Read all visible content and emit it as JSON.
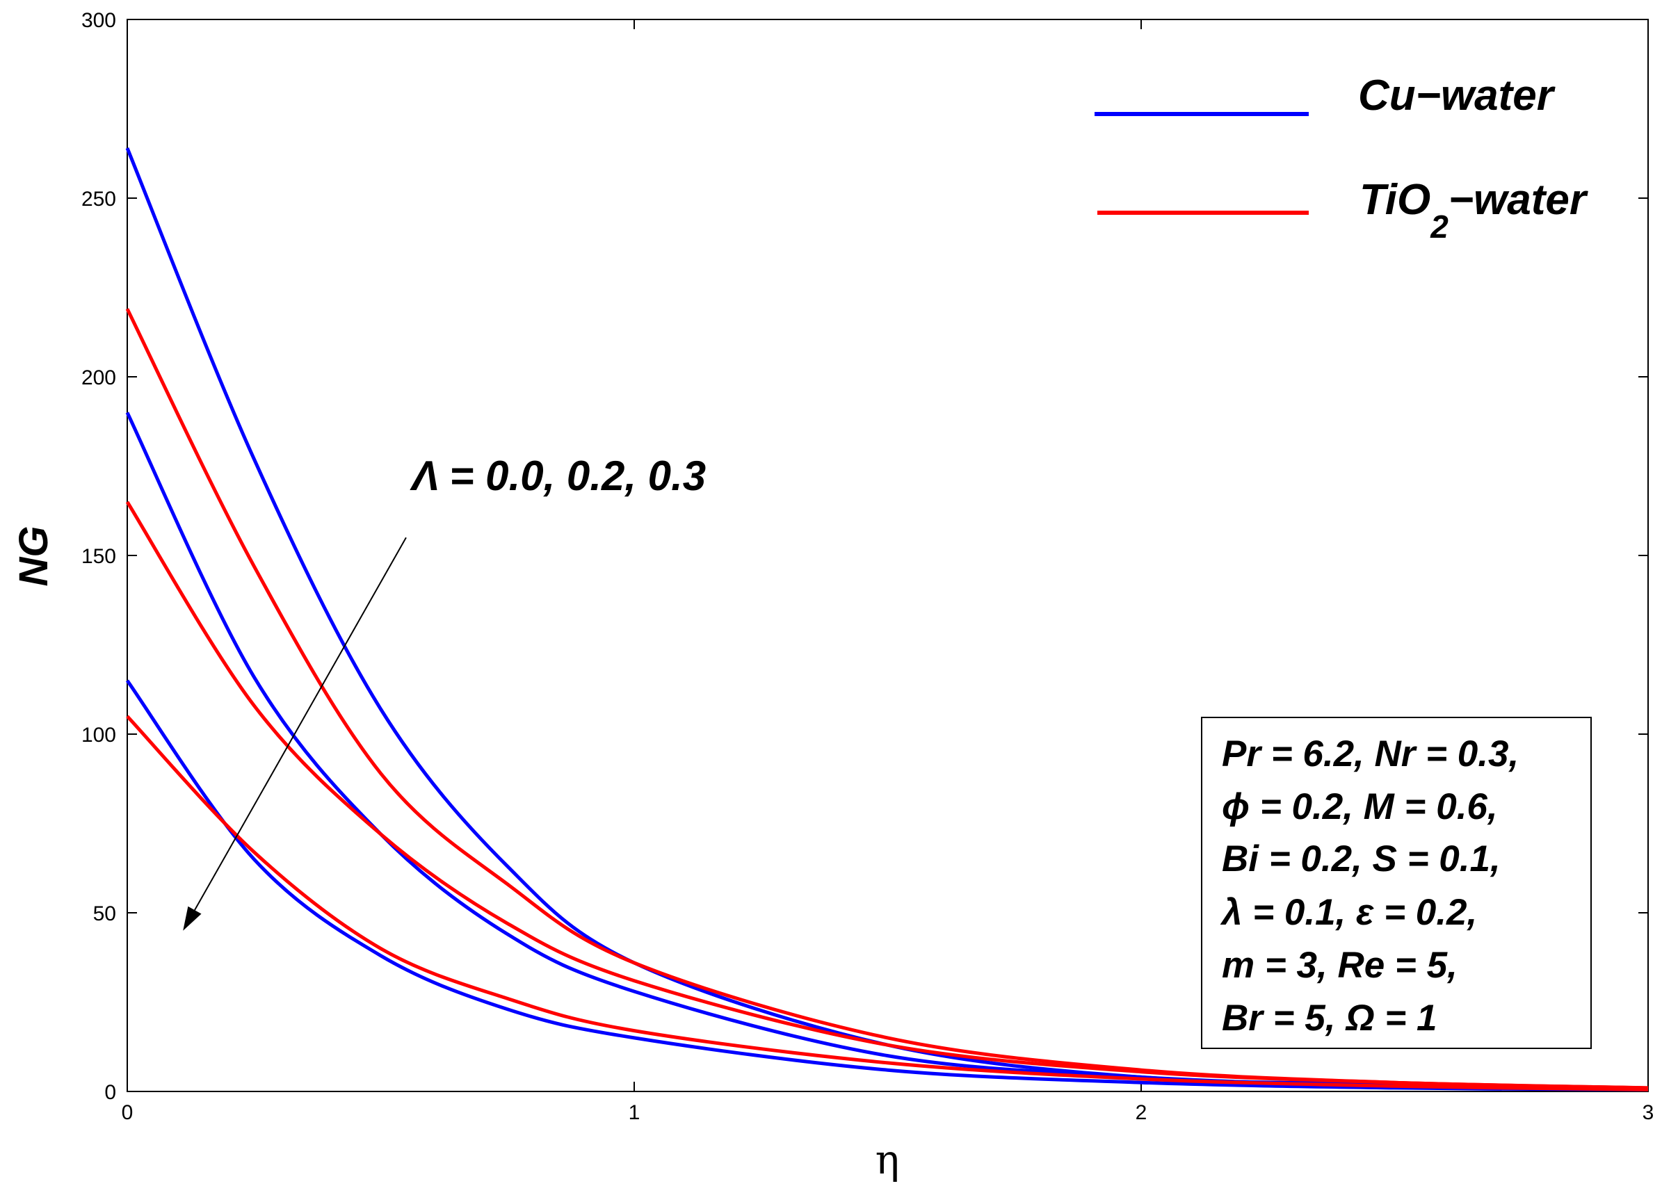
{
  "chart_data": {
    "type": "line",
    "title": "",
    "xlabel": "η",
    "ylabel": "NG",
    "xlim": [
      0,
      3
    ],
    "ylim": [
      0,
      300
    ],
    "xticks": [
      0,
      1,
      2,
      3
    ],
    "yticks": [
      0,
      50,
      100,
      150,
      200,
      250,
      300
    ],
    "xtick_labels": [
      "0",
      "1",
      "2",
      "3"
    ],
    "ytick_labels": [
      "0",
      "50",
      "100",
      "150",
      "200",
      "250",
      "300"
    ],
    "grid": false,
    "legend_position": "top-right",
    "series": [
      {
        "name": "Cu-water",
        "legend_label": "Cu−water",
        "color": "#0000ff",
        "lambda": "0.0",
        "x": [
          0,
          0.25,
          0.5,
          0.75,
          1.0,
          1.5,
          2.0,
          2.5,
          3.0
        ],
        "values": [
          264,
          177,
          107,
          63,
          36,
          13,
          4,
          2,
          0.5
        ]
      },
      {
        "name": "Cu-water",
        "legend_label": "Cu−water",
        "color": "#0000ff",
        "lambda": "0.2",
        "x": [
          0,
          0.25,
          0.5,
          0.75,
          1.0,
          1.5,
          2.0,
          2.5,
          3.0
        ],
        "values": [
          190,
          116,
          72,
          44,
          28,
          10,
          4,
          1.5,
          0.5
        ]
      },
      {
        "name": "Cu-water",
        "legend_label": "Cu−water",
        "color": "#0000ff",
        "lambda": "0.3",
        "x": [
          0,
          0.25,
          0.5,
          0.75,
          1.0,
          1.5,
          2.0,
          2.5,
          3.0
        ],
        "values": [
          115,
          65,
          38,
          23,
          15,
          6,
          2.5,
          1,
          0.5
        ]
      },
      {
        "name": "TiO2-water",
        "legend_label": "TiO₂−water",
        "color": "#ff0000",
        "lambda": "0.0",
        "x": [
          0,
          0.25,
          0.5,
          0.75,
          1.0,
          1.5,
          2.0,
          2.5,
          3.0
        ],
        "values": [
          219,
          147,
          89,
          58,
          36,
          15,
          6,
          2.5,
          1
        ]
      },
      {
        "name": "TiO2-water",
        "legend_label": "TiO₂−water",
        "color": "#ff0000",
        "lambda": "0.2",
        "x": [
          0,
          0.25,
          0.5,
          0.75,
          1.0,
          1.5,
          2.0,
          2.5,
          3.0
        ],
        "values": [
          165,
          108,
          72,
          47,
          31,
          13,
          5.5,
          2.5,
          1
        ]
      },
      {
        "name": "TiO2-water",
        "legend_label": "TiO₂−water",
        "color": "#ff0000",
        "lambda": "0.3",
        "x": [
          0,
          0.25,
          0.5,
          0.75,
          1.0,
          1.5,
          2.0,
          2.5,
          3.0
        ],
        "values": [
          105,
          67,
          40,
          26,
          17,
          8,
          3.5,
          1.5,
          0.5
        ]
      }
    ],
    "legend": [
      {
        "label": "Cu−water",
        "color": "#0000ff"
      },
      {
        "label_main": "TiO",
        "label_sub": "2",
        "label_rest": "−water",
        "color": "#ff0000"
      }
    ],
    "annotations": {
      "arrow_label": "Λ = 0.0, 0.2, 0.3",
      "arrow_from": [
        0.55,
        155
      ],
      "arrow_to": [
        0.11,
        45
      ],
      "parameters": [
        "Pr = 6.2, Nr = 0.3,",
        "ϕ = 0.2, M = 0.6,",
        "Bi = 0.2, S = 0.1,",
        "λ = 0.1, ε = 0.2,",
        "m = 3, Re = 5,",
        "Br = 5, Ω = 1"
      ]
    }
  }
}
